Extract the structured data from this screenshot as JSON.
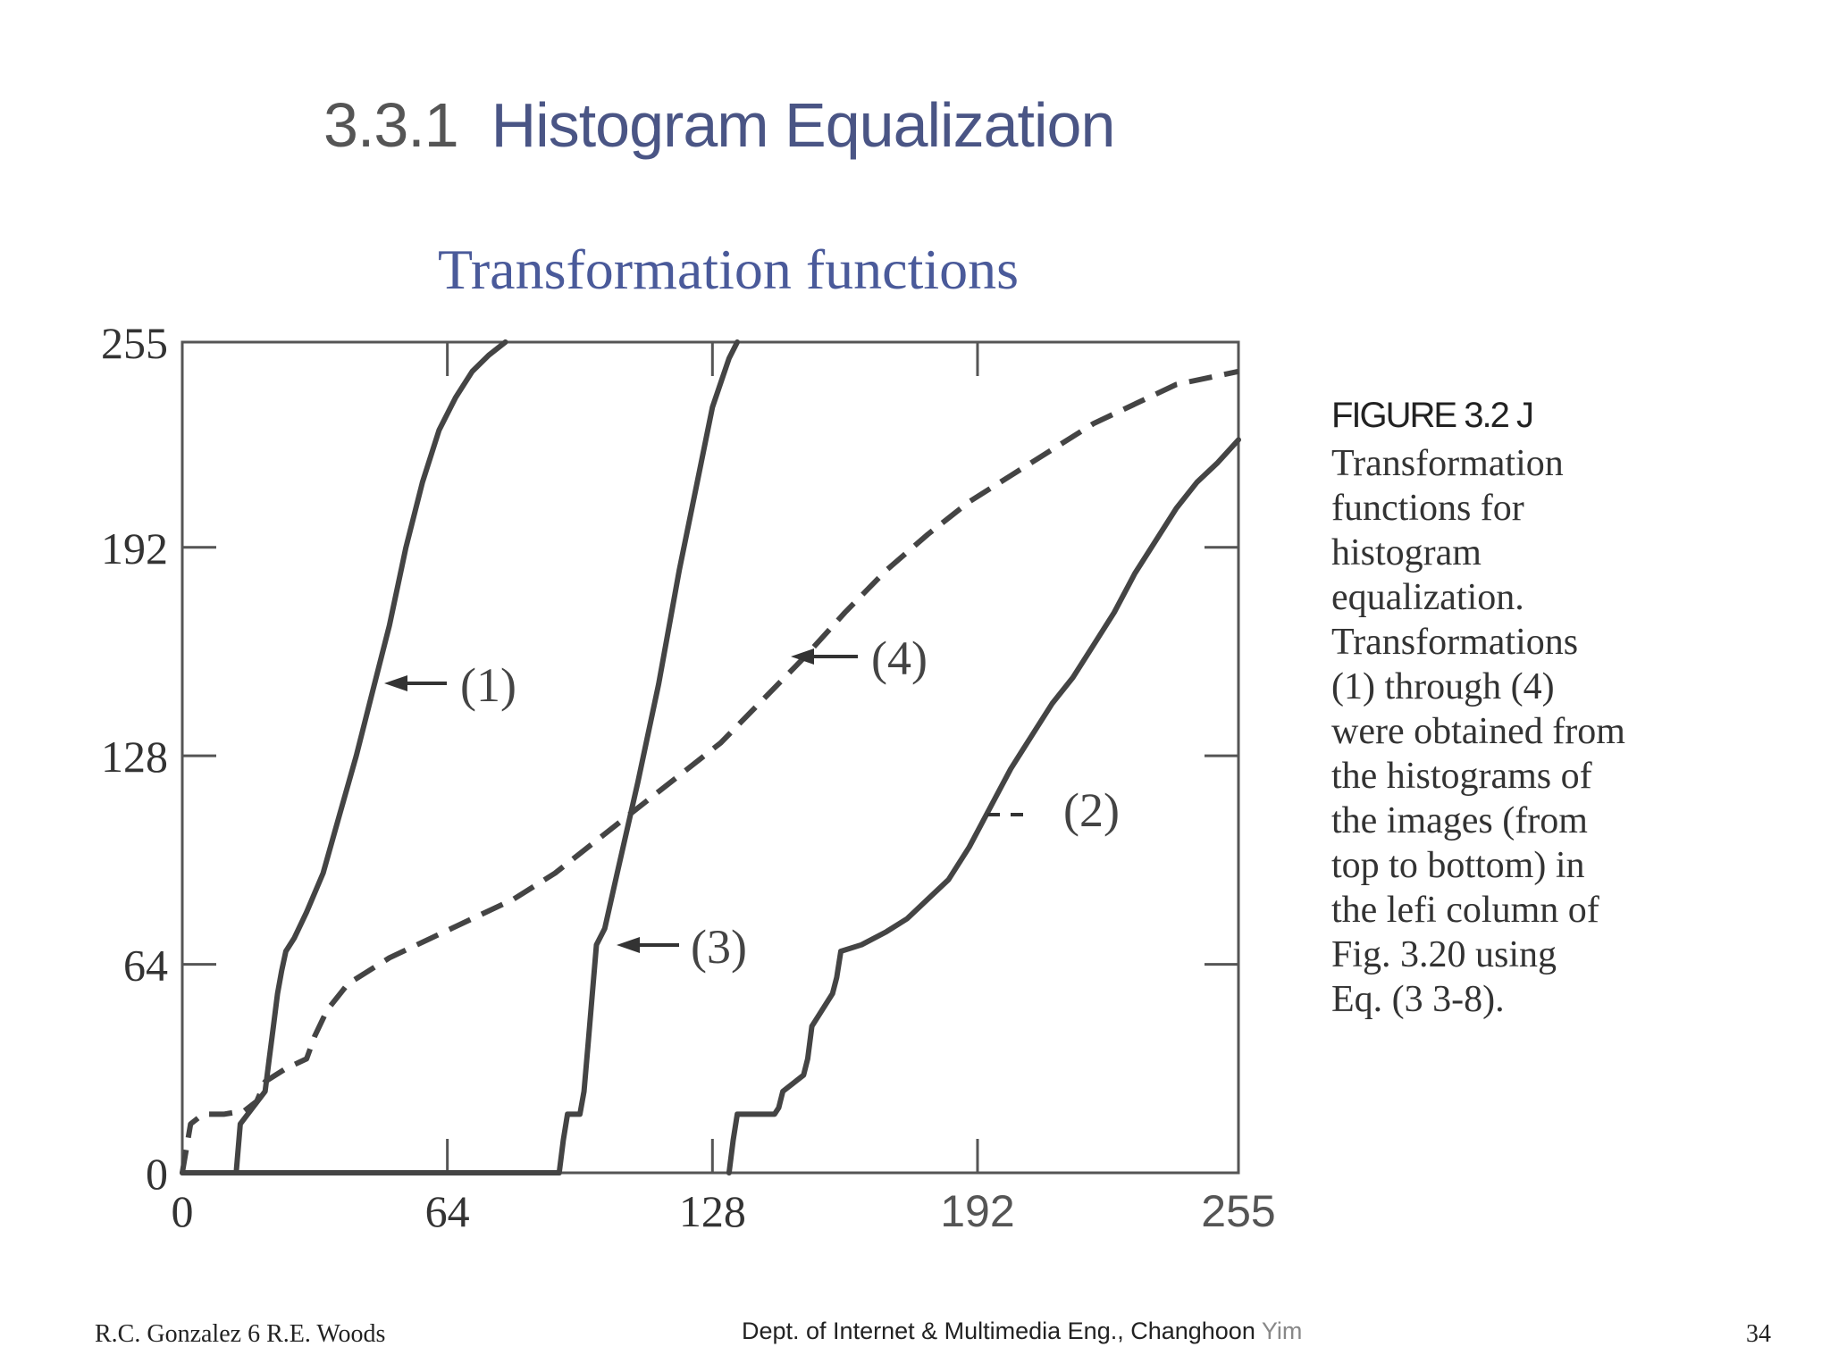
{
  "slide": {
    "title_number": "3.3.1",
    "title_text": "Histogram Equalization"
  },
  "chart_data": {
    "type": "line",
    "title": "Transformation functions",
    "xlim": [
      0,
      255
    ],
    "ylim": [
      0,
      255
    ],
    "x_ticks": [
      "0",
      "64",
      "128",
      "192",
      "255"
    ],
    "y_ticks": [
      "0",
      "64",
      "128",
      "192",
      "255"
    ],
    "series": [
      {
        "name": "(1)",
        "style": "solid",
        "x": [
          0,
          13,
          14,
          17,
          20,
          21,
          22,
          23,
          24,
          25,
          27,
          30,
          34,
          38,
          42,
          46,
          50,
          54,
          58,
          62,
          66,
          70,
          74,
          78
        ],
        "y": [
          0,
          0,
          15,
          20,
          25,
          35,
          45,
          55,
          62,
          68,
          72,
          80,
          92,
          110,
          128,
          148,
          168,
          192,
          212,
          228,
          238,
          246,
          251,
          255
        ]
      },
      {
        "name": "(2)",
        "style": "solid",
        "x": [
          132,
          133,
          134,
          143,
          144,
          145,
          150,
          151,
          152,
          157,
          158,
          159,
          164,
          170,
          175,
          180,
          185,
          190,
          195,
          200,
          205,
          210,
          215,
          220,
          225,
          230,
          235,
          240,
          245,
          250,
          255
        ],
        "y": [
          0,
          10,
          18,
          18,
          20,
          25,
          30,
          35,
          45,
          55,
          60,
          68,
          70,
          74,
          78,
          84,
          90,
          100,
          112,
          124,
          134,
          144,
          152,
          162,
          172,
          184,
          194,
          204,
          212,
          218,
          225
        ]
      },
      {
        "name": "(3)",
        "style": "solid",
        "x": [
          0,
          91,
          92,
          93,
          96,
          97,
          98,
          99,
          100,
          102,
          105,
          110,
          115,
          120,
          124,
          128,
          132,
          134
        ],
        "y": [
          0,
          0,
          10,
          18,
          18,
          25,
          40,
          55,
          70,
          75,
          92,
          120,
          150,
          185,
          210,
          235,
          250,
          255
        ]
      },
      {
        "name": "(4)",
        "style": "dashed",
        "x": [
          0,
          2,
          5,
          10,
          15,
          18,
          20,
          25,
          30,
          32,
          35,
          40,
          50,
          60,
          70,
          80,
          90,
          100,
          110,
          120,
          130,
          140,
          150,
          160,
          170,
          180,
          190,
          200,
          210,
          220,
          230,
          240,
          255
        ],
        "y": [
          0,
          15,
          18,
          18,
          19,
          22,
          28,
          32,
          35,
          42,
          50,
          58,
          66,
          72,
          78,
          84,
          92,
          102,
          112,
          122,
          132,
          145,
          158,
          172,
          185,
          196,
          206,
          214,
          222,
          230,
          236,
          242,
          246
        ]
      }
    ],
    "annotations": [
      {
        "label": "(1)",
        "series": "(1)",
        "arrow": true
      },
      {
        "label": "(2)",
        "series": "(2)",
        "arrow": false
      },
      {
        "label": "(3)",
        "series": "(3)",
        "arrow": true
      },
      {
        "label": "(4)",
        "series": "(4)",
        "arrow": true
      }
    ]
  },
  "caption": {
    "figure_label": "FIGURE 3.2 J",
    "lines": [
      "Transformation",
      "functions  for",
      "histogram",
      "equalization.",
      "Transformations",
      "(1) through (4)",
      "were obtained from",
      "the histograms of",
      "the images (from",
      "top to bottom) in",
      "the lefi column of",
      "Fig. 3.20 using",
      "Eq. (3 3-8)."
    ]
  },
  "footer": {
    "left": "R.C. Gonzalez 6  R.E. Woods",
    "center_main": "Dept. of Internet & Multimedia Eng., Changhoon",
    "center_name": "Yim",
    "page": "34"
  }
}
